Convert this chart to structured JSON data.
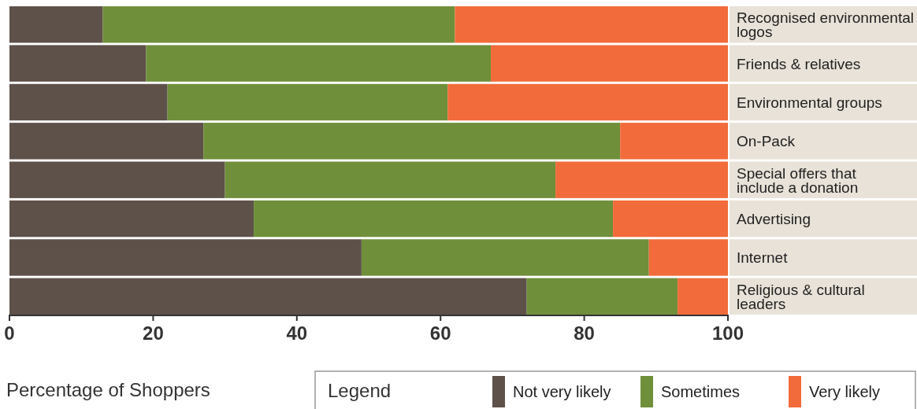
{
  "chart_data": {
    "type": "bar",
    "orientation": "horizontal",
    "stacked": true,
    "xlabel": "Percentage of Shoppers",
    "legend_title": "Legend",
    "legend": "bottom right",
    "grid": false,
    "categories": [
      "Recognised environmental logos",
      "Friends & relatives",
      "Environmental groups",
      "On-Pack",
      "Special offers that include a donation",
      "Advertising",
      "Internet",
      "Religious & cultural leaders"
    ],
    "xlim": [
      0,
      100
    ],
    "xticks": [
      0,
      20,
      40,
      60,
      80,
      100
    ],
    "series": [
      {
        "name": "Not very likely",
        "color": "#5e514a",
        "values": [
          13,
          19,
          22,
          27,
          30,
          34,
          49,
          72
        ]
      },
      {
        "name": "Sometimes",
        "color": "#6f8f3a",
        "values": [
          49,
          48,
          39,
          58,
          46,
          50,
          40,
          21
        ]
      },
      {
        "name": "Very likely",
        "color": "#f26b3a",
        "values": [
          38,
          33,
          39,
          15,
          24,
          16,
          11,
          7
        ]
      }
    ]
  }
}
